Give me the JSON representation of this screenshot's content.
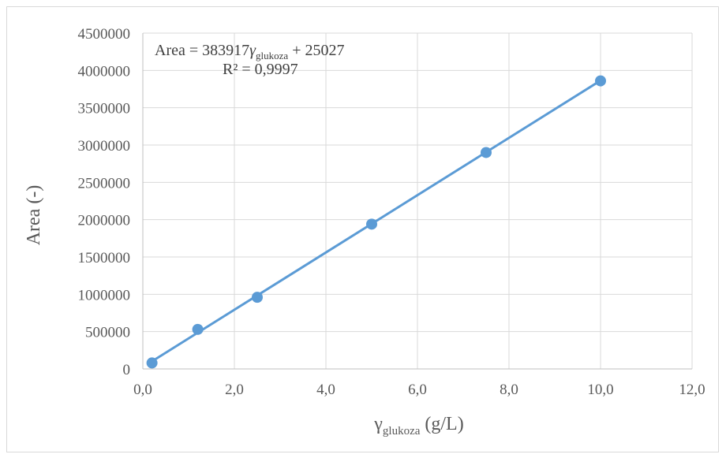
{
  "chart_data": {
    "type": "scatter",
    "title": "",
    "xlabel": {
      "symbol": "γ",
      "subscript": "glukoza",
      "unit": " (g/L)"
    },
    "ylabel": "Area (-)",
    "xlim": [
      0,
      12
    ],
    "ylim": [
      0,
      4500000
    ],
    "x_ticks": [
      "0,0",
      "2,0",
      "4,0",
      "6,0",
      "8,0",
      "10,0",
      "12,0"
    ],
    "y_ticks": [
      "0",
      "500000",
      "1000000",
      "1500000",
      "2000000",
      "2500000",
      "3000000",
      "3500000",
      "4000000",
      "4500000"
    ],
    "x_tick_values": [
      0,
      2,
      4,
      6,
      8,
      10,
      12
    ],
    "y_tick_values": [
      0,
      500000,
      1000000,
      1500000,
      2000000,
      2500000,
      3000000,
      3500000,
      4000000,
      4500000
    ],
    "grid": true,
    "legend": "none",
    "series": [
      {
        "x": [
          0.2,
          1.2,
          2.5,
          5.0,
          7.5,
          10.0
        ],
        "y": [
          80000,
          530000,
          960000,
          1940000,
          2900000,
          3860000
        ],
        "color": "#5b9bd5"
      }
    ],
    "trendline": {
      "slope": 383917,
      "intercept": 25027,
      "x_range": [
        0.2,
        10.0
      ],
      "color": "#5b9bd5",
      "equation": {
        "prefix": "Area = 383917",
        "symbol": "γ",
        "subscript": "glukoza",
        "suffix": " + 25027"
      },
      "r_squared": "R² = 0,9997"
    }
  }
}
